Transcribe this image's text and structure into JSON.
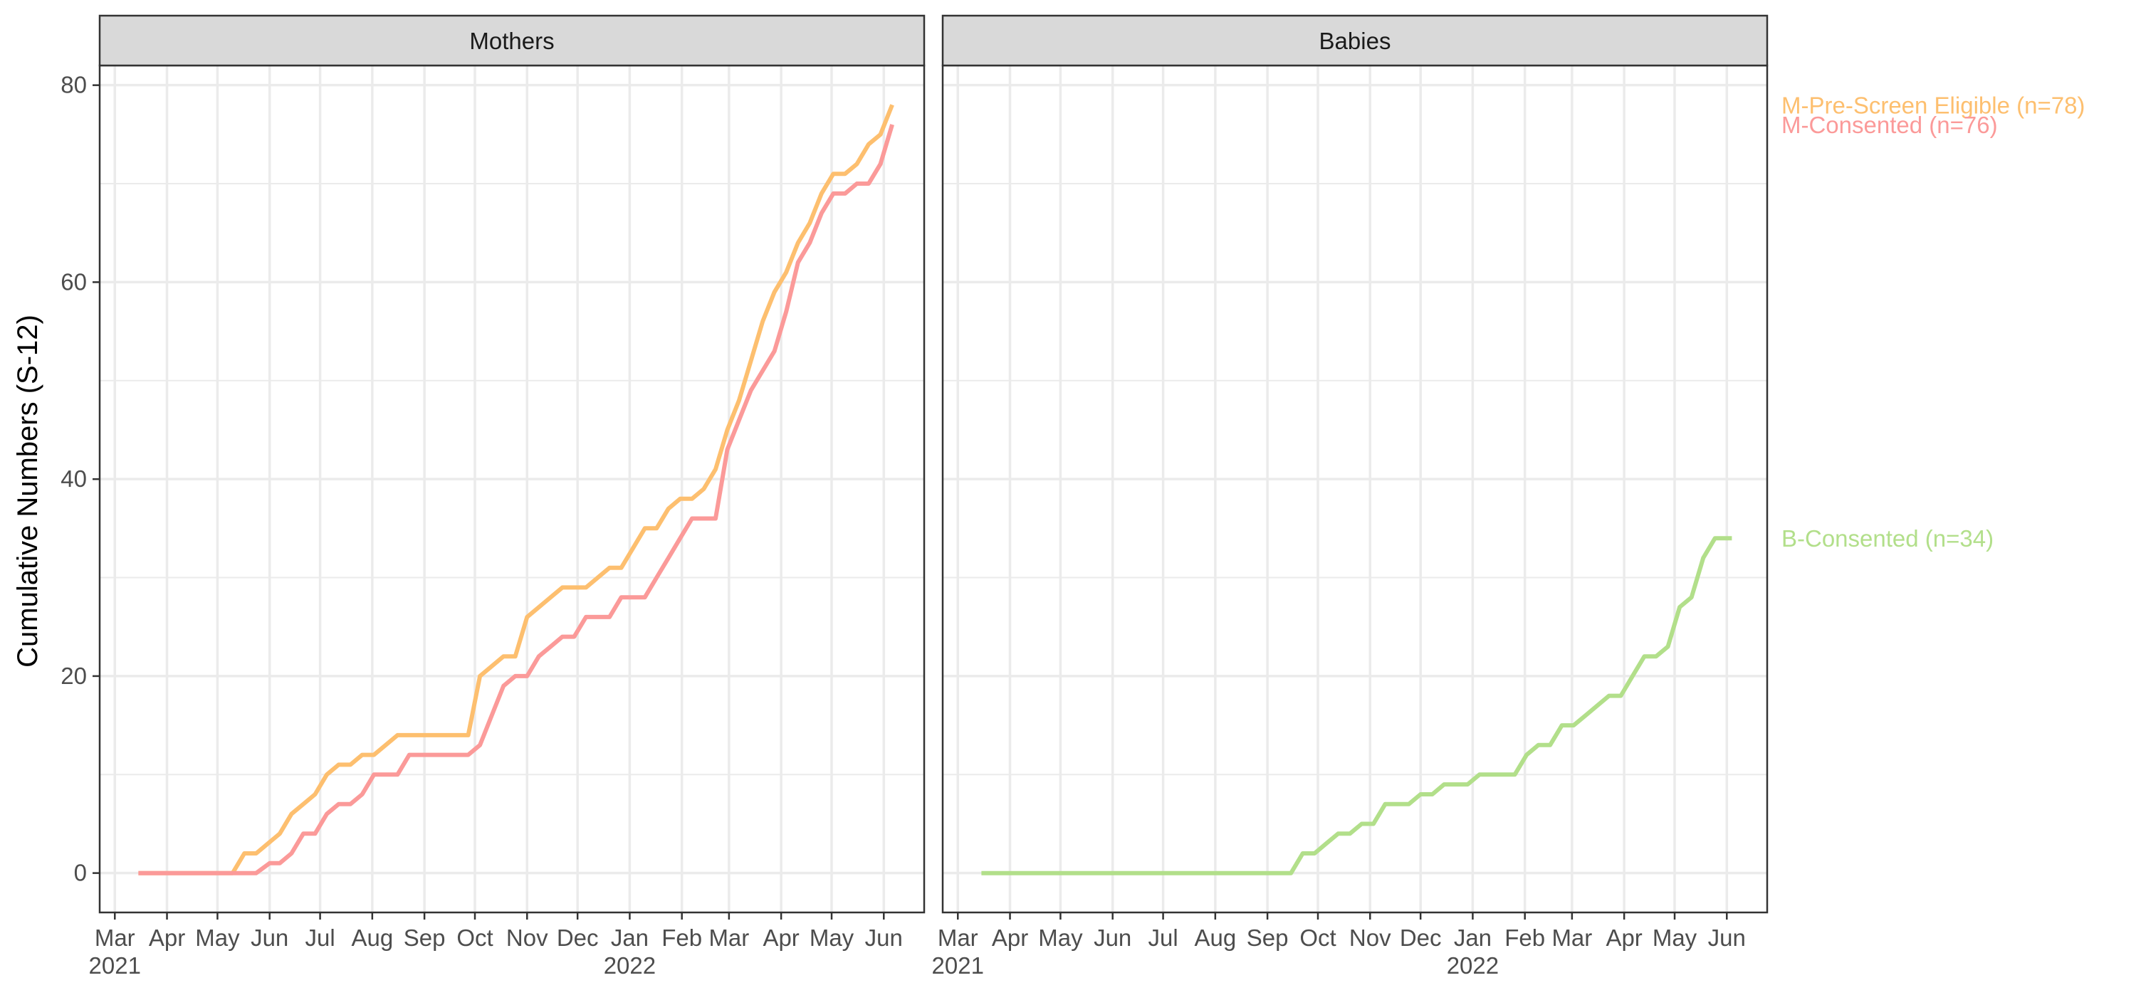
{
  "chart_data": {
    "type": "line",
    "ylabel": "Cumulative Numbers (S-12)",
    "ylim": [
      -4,
      82
    ],
    "yticks": [
      0,
      20,
      40,
      60,
      80
    ],
    "xlim": [
      "2021-02-20",
      "2022-06-25"
    ],
    "xticks": [
      {
        "date": "2021-03-01",
        "label": "Mar",
        "year": "2021"
      },
      {
        "date": "2021-04-01",
        "label": "Apr",
        "year": ""
      },
      {
        "date": "2021-05-01",
        "label": "May",
        "year": ""
      },
      {
        "date": "2021-06-01",
        "label": "Jun",
        "year": ""
      },
      {
        "date": "2021-07-01",
        "label": "Jul",
        "year": ""
      },
      {
        "date": "2021-08-01",
        "label": "Aug",
        "year": ""
      },
      {
        "date": "2021-09-01",
        "label": "Sep",
        "year": ""
      },
      {
        "date": "2021-10-01",
        "label": "Oct",
        "year": ""
      },
      {
        "date": "2021-11-01",
        "label": "Nov",
        "year": ""
      },
      {
        "date": "2021-12-01",
        "label": "Dec",
        "year": ""
      },
      {
        "date": "2022-01-01",
        "label": "Jan",
        "year": "2022"
      },
      {
        "date": "2022-02-01",
        "label": "Feb",
        "year": ""
      },
      {
        "date": "2022-03-01",
        "label": "Mar",
        "year": ""
      },
      {
        "date": "2022-04-01",
        "label": "Apr",
        "year": ""
      },
      {
        "date": "2022-05-01",
        "label": "May",
        "year": ""
      },
      {
        "date": "2022-06-01",
        "label": "Jun",
        "year": ""
      }
    ],
    "grid": true,
    "colors": {
      "prescreen": "#FDBF6F",
      "mconsent": "#FB9A99",
      "bconsent": "#B2DF8A",
      "strip": "#D9D9D9",
      "grid": "#EBEBEB",
      "axis": "#333333",
      "text": "#4D4D4D"
    },
    "panels": [
      {
        "name": "Mothers",
        "series": [
          {
            "name": "M-Pre-Screen Eligible (n=78)",
            "color_key": "prescreen",
            "points": [
              [
                "2021-03-15",
                0
              ],
              [
                "2021-05-10",
                0
              ],
              [
                "2021-05-17",
                2
              ],
              [
                "2021-05-24",
                2
              ],
              [
                "2021-06-07",
                4
              ],
              [
                "2021-06-14",
                6
              ],
              [
                "2021-06-21",
                7
              ],
              [
                "2021-06-28",
                8
              ],
              [
                "2021-07-05",
                10
              ],
              [
                "2021-07-12",
                11
              ],
              [
                "2021-07-19",
                11
              ],
              [
                "2021-07-26",
                12
              ],
              [
                "2021-08-02",
                12
              ],
              [
                "2021-08-16",
                14
              ],
              [
                "2021-09-27",
                14
              ],
              [
                "2021-10-04",
                20
              ],
              [
                "2021-10-18",
                22
              ],
              [
                "2021-10-25",
                22
              ],
              [
                "2021-11-01",
                26
              ],
              [
                "2021-11-15",
                28
              ],
              [
                "2021-11-22",
                29
              ],
              [
                "2021-12-06",
                29
              ],
              [
                "2021-12-20",
                31
              ],
              [
                "2021-12-27",
                31
              ],
              [
                "2022-01-10",
                35
              ],
              [
                "2022-01-17",
                35
              ],
              [
                "2022-01-24",
                37
              ],
              [
                "2022-01-31",
                38
              ],
              [
                "2022-02-07",
                38
              ],
              [
                "2022-02-14",
                39
              ],
              [
                "2022-02-21",
                41
              ],
              [
                "2022-02-28",
                45
              ],
              [
                "2022-03-07",
                48
              ],
              [
                "2022-03-14",
                52
              ],
              [
                "2022-03-21",
                56
              ],
              [
                "2022-03-28",
                59
              ],
              [
                "2022-04-04",
                61
              ],
              [
                "2022-04-11",
                64
              ],
              [
                "2022-04-18",
                66
              ],
              [
                "2022-04-25",
                69
              ],
              [
                "2022-05-02",
                71
              ],
              [
                "2022-05-09",
                71
              ],
              [
                "2022-05-16",
                72
              ],
              [
                "2022-05-23",
                74
              ],
              [
                "2022-05-30",
                75
              ],
              [
                "2022-06-06",
                78
              ]
            ]
          },
          {
            "name": "M-Consented (n=76)",
            "color_key": "mconsent",
            "points": [
              [
                "2021-03-15",
                0
              ],
              [
                "2021-05-17",
                0
              ],
              [
                "2021-05-24",
                0
              ],
              [
                "2021-06-01",
                1
              ],
              [
                "2021-06-07",
                1
              ],
              [
                "2021-06-14",
                2
              ],
              [
                "2021-06-21",
                4
              ],
              [
                "2021-06-28",
                4
              ],
              [
                "2021-07-05",
                6
              ],
              [
                "2021-07-12",
                7
              ],
              [
                "2021-07-19",
                7
              ],
              [
                "2021-07-26",
                8
              ],
              [
                "2021-08-02",
                10
              ],
              [
                "2021-08-16",
                10
              ],
              [
                "2021-08-23",
                12
              ],
              [
                "2021-09-27",
                12
              ],
              [
                "2021-10-04",
                13
              ],
              [
                "2021-10-11",
                16
              ],
              [
                "2021-10-18",
                19
              ],
              [
                "2021-10-25",
                20
              ],
              [
                "2021-11-01",
                20
              ],
              [
                "2021-11-08",
                22
              ],
              [
                "2021-11-15",
                23
              ],
              [
                "2021-11-22",
                24
              ],
              [
                "2021-11-29",
                24
              ],
              [
                "2021-12-06",
                26
              ],
              [
                "2021-12-20",
                26
              ],
              [
                "2021-12-27",
                28
              ],
              [
                "2022-01-10",
                28
              ],
              [
                "2022-01-17",
                30
              ],
              [
                "2022-01-24",
                32
              ],
              [
                "2022-01-31",
                34
              ],
              [
                "2022-02-07",
                36
              ],
              [
                "2022-02-21",
                36
              ],
              [
                "2022-02-28",
                43
              ],
              [
                "2022-03-07",
                46
              ],
              [
                "2022-03-14",
                49
              ],
              [
                "2022-03-21",
                51
              ],
              [
                "2022-03-28",
                53
              ],
              [
                "2022-04-04",
                57
              ],
              [
                "2022-04-11",
                62
              ],
              [
                "2022-04-18",
                64
              ],
              [
                "2022-04-25",
                67
              ],
              [
                "2022-05-02",
                69
              ],
              [
                "2022-05-09",
                69
              ],
              [
                "2022-05-16",
                70
              ],
              [
                "2022-05-23",
                70
              ],
              [
                "2022-05-30",
                72
              ],
              [
                "2022-06-06",
                76
              ]
            ]
          }
        ]
      },
      {
        "name": "Babies",
        "series": [
          {
            "name": "B-Consented (n=34)",
            "color_key": "bconsent",
            "points": [
              [
                "2021-03-15",
                0
              ],
              [
                "2021-09-15",
                0
              ],
              [
                "2021-09-22",
                2
              ],
              [
                "2021-09-29",
                2
              ],
              [
                "2021-10-06",
                3
              ],
              [
                "2021-10-13",
                4
              ],
              [
                "2021-10-20",
                4
              ],
              [
                "2021-10-27",
                5
              ],
              [
                "2021-11-03",
                5
              ],
              [
                "2021-11-10",
                7
              ],
              [
                "2021-11-24",
                7
              ],
              [
                "2021-12-01",
                8
              ],
              [
                "2021-12-08",
                8
              ],
              [
                "2021-12-15",
                9
              ],
              [
                "2021-12-29",
                9
              ],
              [
                "2022-01-05",
                10
              ],
              [
                "2022-01-26",
                10
              ],
              [
                "2022-02-02",
                12
              ],
              [
                "2022-02-09",
                13
              ],
              [
                "2022-02-16",
                13
              ],
              [
                "2022-02-23",
                15
              ],
              [
                "2022-03-02",
                15
              ],
              [
                "2022-03-09",
                16
              ],
              [
                "2022-03-16",
                17
              ],
              [
                "2022-03-23",
                18
              ],
              [
                "2022-03-30",
                18
              ],
              [
                "2022-04-06",
                20
              ],
              [
                "2022-04-13",
                22
              ],
              [
                "2022-04-20",
                22
              ],
              [
                "2022-04-27",
                23
              ],
              [
                "2022-05-04",
                27
              ],
              [
                "2022-05-11",
                28
              ],
              [
                "2022-05-18",
                32
              ],
              [
                "2022-05-25",
                34
              ],
              [
                "2022-06-01",
                34
              ],
              [
                "2022-06-04",
                34
              ]
            ]
          }
        ]
      }
    ]
  }
}
